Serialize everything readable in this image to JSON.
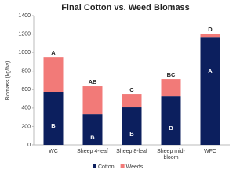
{
  "chart_data": {
    "type": "stacked_bar",
    "title": "Final Cotton vs. Weed Biomass",
    "y_label": "Biomass (kg/ha)",
    "categories": [
      "WC",
      "Sheep 4-leaf",
      "Sheep 8-leaf",
      "Sheep mid-bloom",
      "WFC"
    ],
    "series": [
      {
        "name": "Cotton",
        "color": "#0c1f5e",
        "values": [
          576,
          330,
          407,
          525,
          1169
        ],
        "letters": [
          "B",
          "B",
          "B",
          "B",
          "A"
        ]
      },
      {
        "name": "Weeds",
        "color": "#f27a78",
        "values": [
          373,
          306,
          144,
          187,
          34
        ]
      }
    ],
    "top_letters": [
      "A",
      "AB",
      "C",
      "BC",
      "D"
    ],
    "ylim": [
      0,
      1400
    ],
    "yticks": [
      0,
      200,
      400,
      600,
      800,
      1000,
      1200,
      1400
    ],
    "grid": false,
    "legend": "bottom"
  }
}
